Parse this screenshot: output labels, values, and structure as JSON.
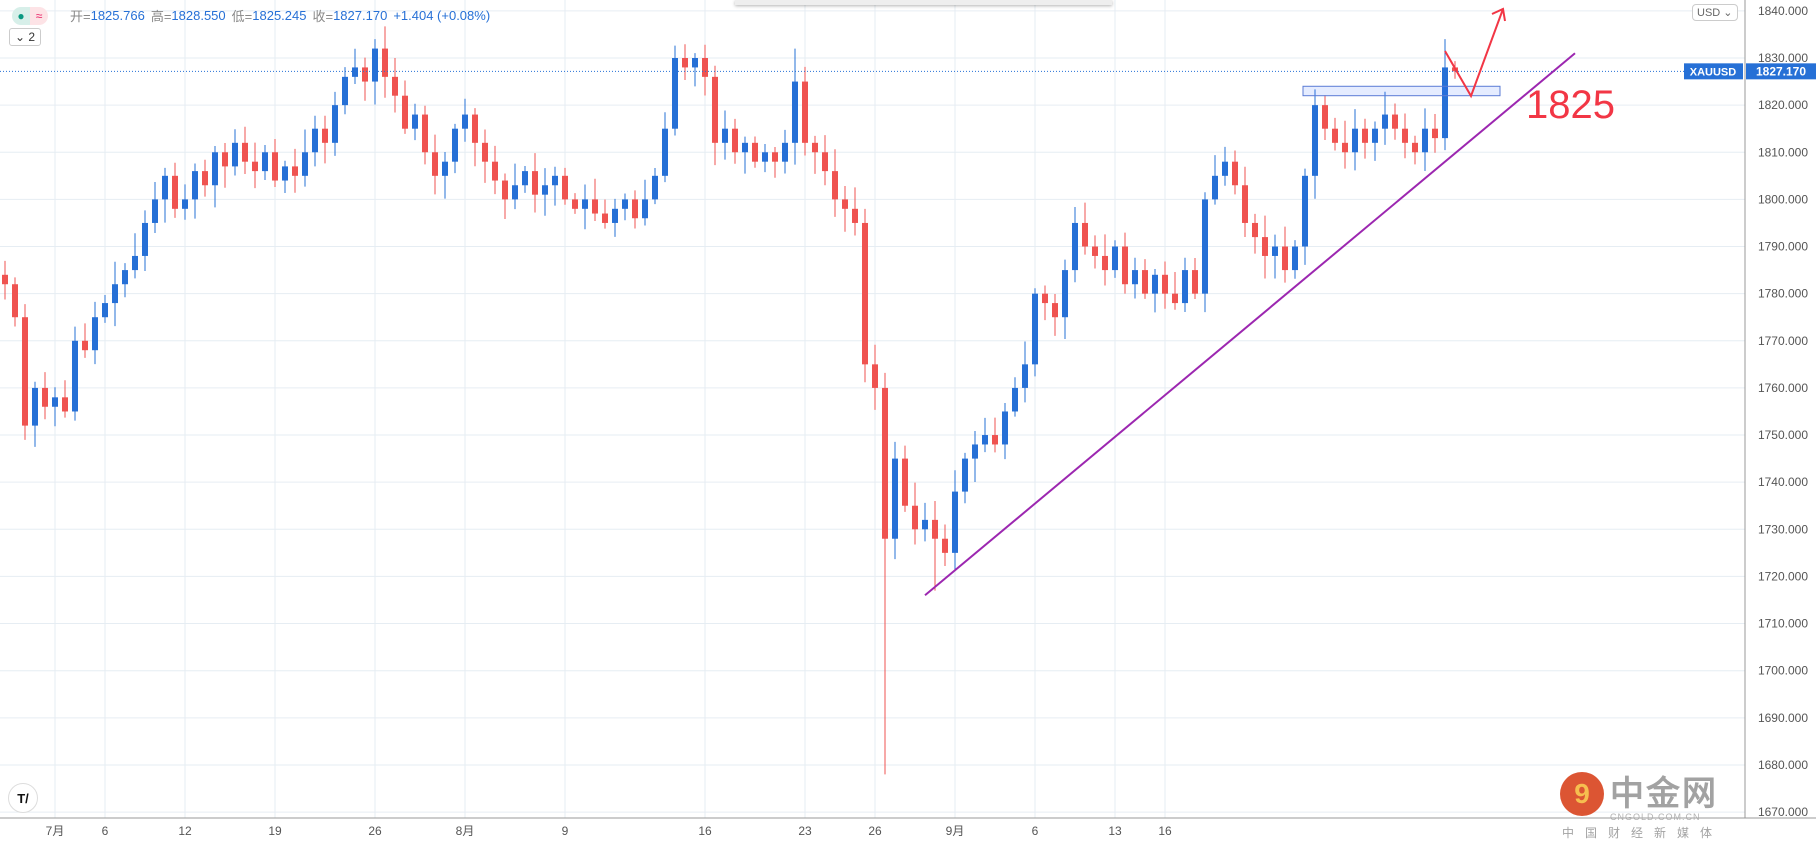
{
  "header": {
    "open_label": "开=",
    "open": "1825.766",
    "high_label": "高=",
    "high": "1828.550",
    "low_label": "低=",
    "low": "1825.245",
    "close_label": "收=",
    "close": "1827.170",
    "change": "+1.404 (+0.08%)",
    "collapse_label": "⌄ 2",
    "currency": "USD ⌄"
  },
  "watermark": {
    "name": "中金网",
    "domain": "CNGOLD.COM.CN",
    "tagline": "中国财经新媒体"
  },
  "logo": "TV",
  "colors": {
    "up": "#2670d6",
    "down": "#ef5350",
    "trendline": "#9c27b0",
    "annotation": "#f23645",
    "grid": "#e6edf3"
  },
  "chart_data": {
    "type": "candlestick",
    "symbol": "XAUUSD",
    "last_price": 1827.17,
    "last_price_label": "1827.170",
    "ylim": [
      1670,
      1840
    ],
    "yticks": [
      "1840.000",
      "1830.000",
      "1820.000",
      "1810.000",
      "1800.000",
      "1790.000",
      "1780.000",
      "1770.000",
      "1760.000",
      "1750.000",
      "1740.000",
      "1730.000",
      "1720.000",
      "1710.000",
      "1700.000",
      "1690.000",
      "1680.000",
      "1670.000"
    ],
    "xticks": [
      {
        "label": "7月",
        "i": 5
      },
      {
        "label": "6",
        "i": 10
      },
      {
        "label": "12",
        "i": 18
      },
      {
        "label": "19",
        "i": 27
      },
      {
        "label": "26",
        "i": 37
      },
      {
        "label": "8月",
        "i": 46
      },
      {
        "label": "9",
        "i": 56
      },
      {
        "label": "16",
        "i": 70
      },
      {
        "label": "23",
        "i": 80
      },
      {
        "label": "26",
        "i": 87
      },
      {
        "label": "9月",
        "i": 95
      },
      {
        "label": "6",
        "i": 103
      },
      {
        "label": "13",
        "i": 111
      },
      {
        "label": "16",
        "i": 116
      }
    ],
    "closes": [
      1782,
      1775,
      1752,
      1760,
      1756,
      1758,
      1755,
      1770,
      1768,
      1775,
      1778,
      1782,
      1785,
      1788,
      1795,
      1800,
      1805,
      1798,
      1800,
      1806,
      1803,
      1810,
      1807,
      1812,
      1808,
      1806,
      1810,
      1804,
      1807,
      1805,
      1810,
      1815,
      1812,
      1820,
      1826,
      1828,
      1825,
      1832,
      1826,
      1822,
      1815,
      1818,
      1810,
      1805,
      1808,
      1815,
      1818,
      1812,
      1808,
      1804,
      1800,
      1803,
      1806,
      1801,
      1803,
      1805,
      1800,
      1798,
      1800,
      1797,
      1795,
      1798,
      1800,
      1796,
      1800,
      1805,
      1815,
      1830,
      1828,
      1830,
      1826,
      1812,
      1815,
      1810,
      1812,
      1808,
      1810,
      1808,
      1812,
      1825,
      1812,
      1810,
      1806,
      1800,
      1798,
      1795,
      1765,
      1760,
      1728,
      1745,
      1735,
      1730,
      1732,
      1728,
      1725,
      1738,
      1745,
      1748,
      1750,
      1748,
      1755,
      1760,
      1765,
      1780,
      1778,
      1775,
      1785,
      1795,
      1790,
      1788,
      1785,
      1790,
      1782,
      1785,
      1780,
      1784,
      1780,
      1778,
      1785,
      1780,
      1800,
      1805,
      1808,
      1803,
      1795,
      1792,
      1788,
      1790,
      1785,
      1790,
      1805,
      1820,
      1815,
      1812,
      1810,
      1815,
      1812,
      1815,
      1818,
      1815,
      1812,
      1810,
      1815,
      1813,
      1828,
      1827.17
    ],
    "extremes": [
      {
        "i": 37,
        "high": 1834
      },
      {
        "i": 79,
        "high": 1832
      },
      {
        "i": 88,
        "low": 1678
      },
      {
        "i": 93,
        "low": 1717
      },
      {
        "i": 144,
        "high": 1834
      }
    ],
    "annotations": {
      "level_text": "1825",
      "level": 1825,
      "trendline": [
        {
          "i": 92,
          "price": 1716
        },
        {
          "i": 157,
          "price": 1831
        }
      ],
      "zone": [
        1822,
        1824
      ]
    }
  }
}
